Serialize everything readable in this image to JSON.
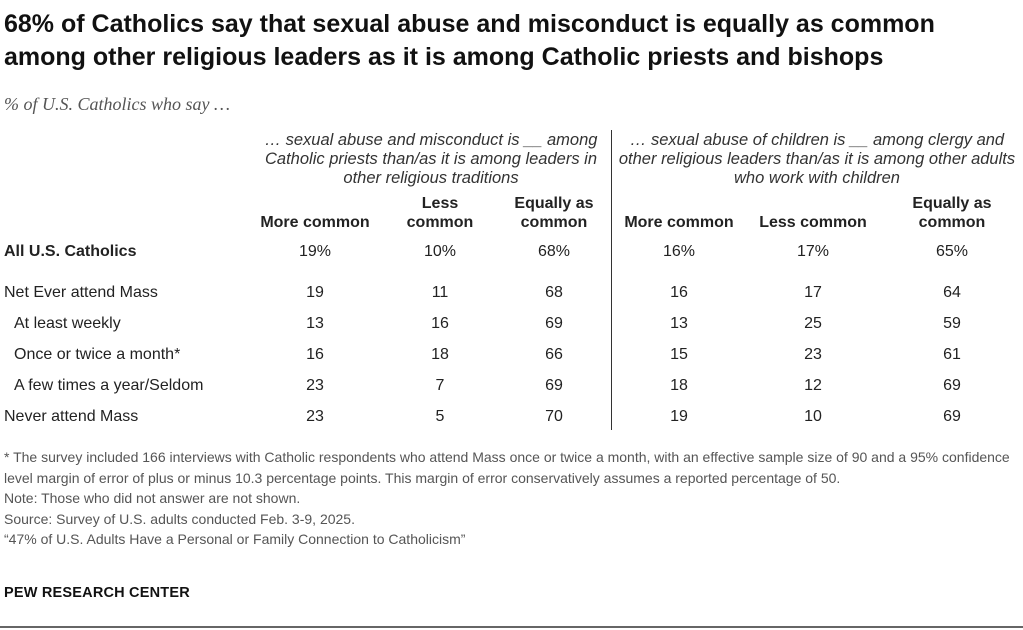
{
  "chart_data": {
    "type": "table",
    "title": "68% of Catholics say that sexual abuse and misconduct is equally as common among other religious leaders as it is among Catholic priests and bishops",
    "subtitle": "% of U.S. Catholics who say …",
    "groups": [
      {
        "header": "… sexual abuse and misconduct is __ among Catholic priests than/as it is among leaders in other religious traditions",
        "columns": [
          {
            "line1": "",
            "line2": "More common"
          },
          {
            "line1": "Less",
            "line2": "common"
          },
          {
            "line1": "Equally as",
            "line2": "common"
          }
        ]
      },
      {
        "header": "… sexual abuse of children is __ among clergy and other religious leaders than/as it is among other adults who work with children",
        "columns": [
          {
            "line1": "",
            "line2": "More common"
          },
          {
            "line1": "",
            "line2": "Less common"
          },
          {
            "line1": "Equally as",
            "line2": "common"
          }
        ]
      }
    ],
    "rows": [
      {
        "label": "All U.S. Catholics",
        "bold": true,
        "values": [
          "19%",
          "10%",
          "68%",
          "16%",
          "17%",
          "65%"
        ]
      },
      {
        "label": "Net Ever attend Mass",
        "bold": false,
        "values": [
          "19",
          "11",
          "68",
          "16",
          "17",
          "64"
        ]
      },
      {
        "label": "At least weekly",
        "bold": false,
        "values": [
          "13",
          "16",
          "69",
          "13",
          "25",
          "59"
        ]
      },
      {
        "label": "Once or twice a month*",
        "bold": false,
        "values": [
          "16",
          "18",
          "66",
          "15",
          "23",
          "61"
        ]
      },
      {
        "label": "A few times a year/Seldom",
        "bold": false,
        "values": [
          "23",
          "7",
          "69",
          "18",
          "12",
          "69"
        ]
      },
      {
        "label": "Never attend Mass",
        "bold": false,
        "values": [
          "23",
          "5",
          "70",
          "19",
          "10",
          "69"
        ]
      }
    ]
  },
  "footnotes": {
    "asterisk": "* The survey included 166 interviews with Catholic respondents who attend Mass once or twice a month, with an effective sample size of 90 and a 95% confidence level margin of error of plus or minus 10.3 percentage points. This margin of error conservatively assumes a reported percentage of 50.",
    "note": "Note: Those who did not answer are not shown.",
    "source": "Source: Survey of U.S. adults conducted Feb. 3-9, 2025.",
    "report": "“47% of U.S. Adults Have a Personal or Family Connection to Catholicism”"
  },
  "brand": "PEW RESEARCH CENTER"
}
